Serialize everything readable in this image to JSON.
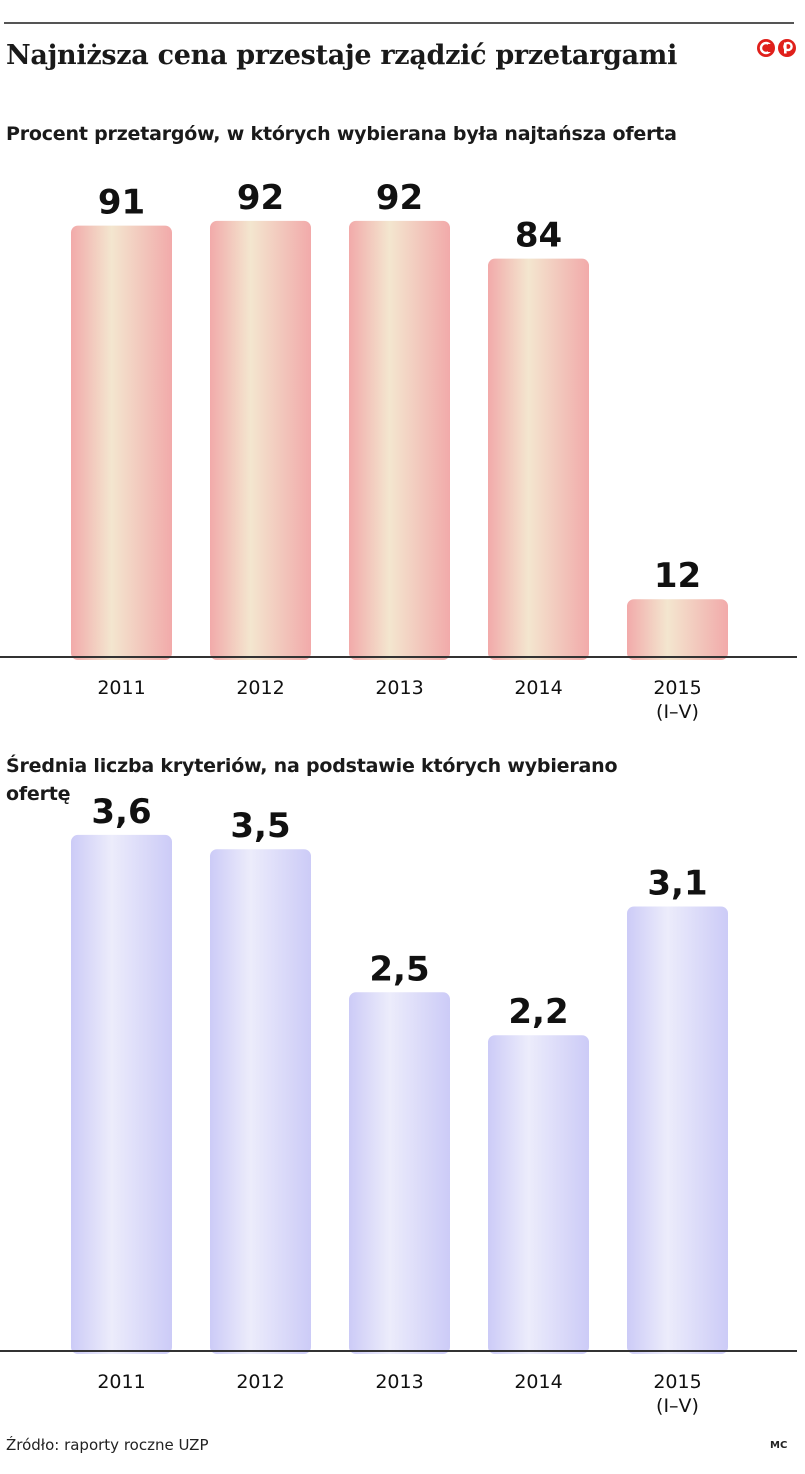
{
  "header": {
    "title": "Najniższa cena przestaje rządzić przetargami"
  },
  "chart_data": [
    {
      "type": "bar",
      "subtitle": "Procent przetargów, w których wybierana była najtańsza oferta",
      "categories": [
        [
          "2011"
        ],
        [
          "2012"
        ],
        [
          "2013"
        ],
        [
          "2014"
        ],
        [
          "2015",
          "(I–V)"
        ]
      ],
      "values": [
        91,
        92,
        92,
        84,
        12
      ],
      "value_labels": [
        "91",
        "92",
        "92",
        "84",
        "12"
      ],
      "ylim": [
        0,
        100
      ],
      "bar_color": "#f2aaaa",
      "bar_highlight": "#f3e6cf",
      "grid": false,
      "legend": "none"
    },
    {
      "type": "bar",
      "subtitle": "Średnia liczba kryteriów, na podstawie których wybierano ofertę",
      "categories": [
        [
          "2011"
        ],
        [
          "2012"
        ],
        [
          "2013"
        ],
        [
          "2014"
        ],
        [
          "2015",
          "(I–V)"
        ]
      ],
      "values": [
        3.6,
        3.5,
        2.5,
        2.2,
        3.1
      ],
      "value_labels": [
        "3,6",
        "3,5",
        "2,5",
        "2,2",
        "3,1"
      ],
      "ylim": [
        0,
        3.9
      ],
      "bar_color": "#cccbf7",
      "bar_highlight": "#ececfb",
      "grid": false,
      "legend": "none"
    }
  ],
  "footer": {
    "source": "Źródło: raporty roczne UZP",
    "credit": "MC"
  }
}
